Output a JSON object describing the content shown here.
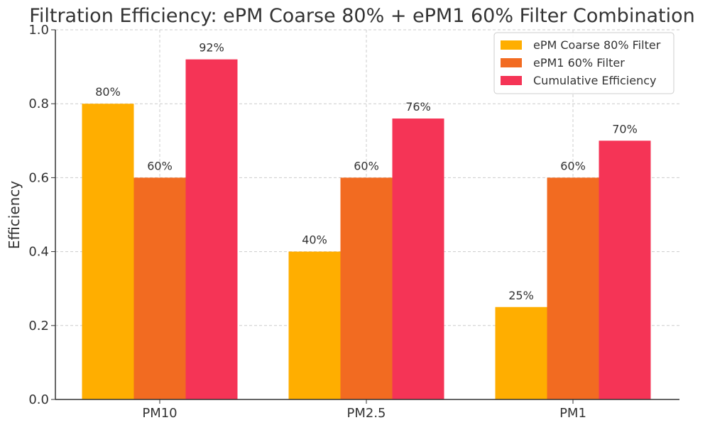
{
  "chart_data": {
    "type": "bar",
    "title": "Filtration Efficiency: ePM Coarse 80% + ePM1 60% Filter Combination",
    "xlabel": "",
    "ylabel": "Efficiency",
    "categories": [
      "PM10",
      "PM2.5",
      "PM1"
    ],
    "ylim": [
      0,
      1.0
    ],
    "yticks": [
      "0.0",
      "0.2",
      "0.4",
      "0.6",
      "0.8",
      "1.0"
    ],
    "grid": true,
    "legend_position": "top-right",
    "series": [
      {
        "name": "ePM Coarse 80% Filter",
        "color": "#FFAE00",
        "values": [
          0.8,
          0.4,
          0.25
        ],
        "labels": [
          "80%",
          "40%",
          "25%"
        ]
      },
      {
        "name": "ePM1 60% Filter",
        "color": "#F26B21",
        "values": [
          0.6,
          0.6,
          0.6
        ],
        "labels": [
          "60%",
          "60%",
          "60%"
        ]
      },
      {
        "name": "Cumulative Efficiency",
        "color": "#F53456",
        "values": [
          0.92,
          0.76,
          0.7
        ],
        "labels": [
          "92%",
          "76%",
          "70%"
        ]
      }
    ]
  }
}
